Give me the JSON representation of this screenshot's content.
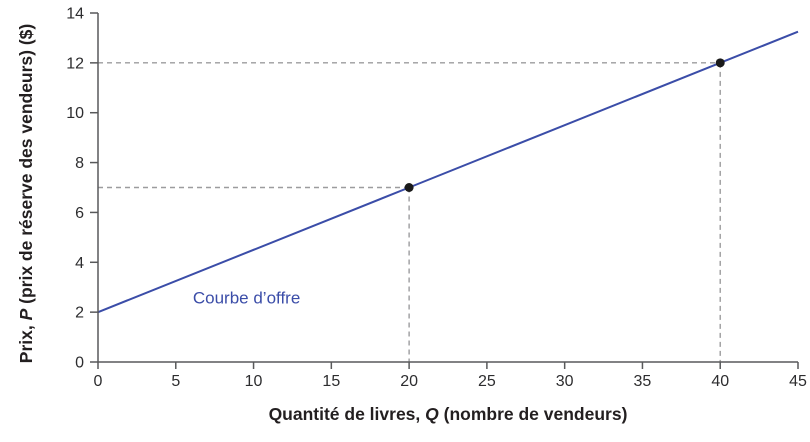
{
  "chart_data": {
    "type": "line",
    "title": "",
    "xlabel": "Quantité de livres, Q (nombre de vendeurs)",
    "ylabel": "Prix, P (prix de réserve des vendeurs) ($)",
    "xlabel_parts": [
      {
        "text": "Quantité de livres, ",
        "italic": false
      },
      {
        "text": "Q",
        "italic": true
      },
      {
        "text": " (nombre de vendeurs)",
        "italic": false
      }
    ],
    "ylabel_parts": [
      {
        "text": "Prix, ",
        "italic": false
      },
      {
        "text": "P",
        "italic": true
      },
      {
        "text": " (prix de réserve des vendeurs) ($)",
        "italic": false
      }
    ],
    "xlim": [
      0,
      45
    ],
    "ylim": [
      0,
      14
    ],
    "x_ticks": [
      0,
      5,
      10,
      15,
      20,
      25,
      30,
      35,
      40,
      45
    ],
    "y_ticks": [
      0,
      2,
      4,
      6,
      8,
      10,
      12,
      14
    ],
    "grid": false,
    "legend_position": "none",
    "series": [
      {
        "name": "Courbe d'offre",
        "x": [
          0,
          20,
          40,
          45
        ],
        "y": [
          2,
          7,
          12,
          13.25
        ],
        "color": "#3b4da8"
      }
    ],
    "marked_points": [
      {
        "x": 20,
        "y": 7
      },
      {
        "x": 40,
        "y": 12
      }
    ],
    "annotations": [
      {
        "text": "Courbe d’offre",
        "x": 6.1,
        "y": 2.35,
        "color": "#3b4da8"
      }
    ]
  },
  "colors": {
    "line": "#3b4da8",
    "point": "#1a1a1a",
    "dashed_guide": "#9c9c9e",
    "axis": "#58595b",
    "tick_text": "#2d2d2f",
    "label_text": "#231f20",
    "background": "#ffffff"
  }
}
